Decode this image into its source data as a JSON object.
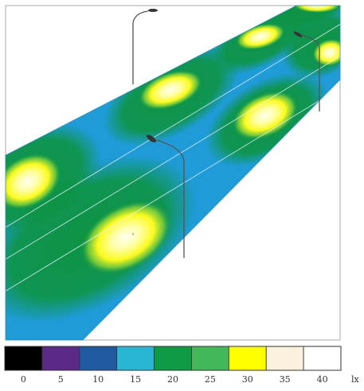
{
  "legend": {
    "bins": [
      {
        "label": "0",
        "color": "#000000"
      },
      {
        "label": "5",
        "color": "#5b2a86"
      },
      {
        "label": "10",
        "color": "#1f5aa0"
      },
      {
        "label": "15",
        "color": "#29b6d3"
      },
      {
        "label": "20",
        "color": "#0f9a45"
      },
      {
        "label": "25",
        "color": "#43b85a"
      },
      {
        "label": "30",
        "color": "#ffff00"
      },
      {
        "label": "35",
        "color": "#fbf1de"
      },
      {
        "label": "40",
        "color": "#ffffff"
      }
    ],
    "unit": "lx"
  },
  "colors": {
    "road_base": "#1f9bd8",
    "road_green": "#0d9443",
    "pool_yellow": "#fafa1e",
    "pool_light": "#ffffc8",
    "pole": "#555555",
    "frame": "#aaaaaa",
    "legend_border": "#333333"
  }
}
